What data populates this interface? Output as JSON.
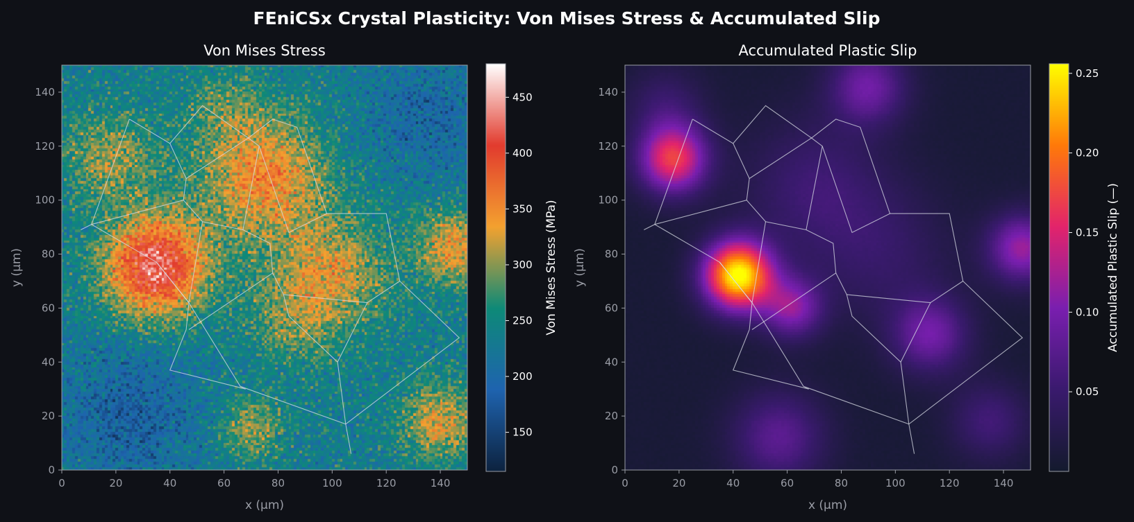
{
  "title": "FEniCSx Crystal Plasticity: Von Mises Stress & Accumulated Slip",
  "colors": {
    "background": "#0f1117",
    "axis": "#9a9da6",
    "grain_boundary": "#d8dce6",
    "text": "#ffffff"
  },
  "chart_data": [
    {
      "type": "heatmap",
      "title": "Von Mises Stress",
      "xlabel": "x (µm)",
      "ylabel": "y (µm)",
      "xlim": [
        0,
        150
      ],
      "ylim": [
        0,
        150
      ],
      "xticks": [
        0,
        20,
        40,
        60,
        80,
        100,
        120,
        140
      ],
      "yticks": [
        0,
        20,
        40,
        60,
        80,
        100,
        120,
        140
      ],
      "grid": false,
      "colormap": [
        "#0d2340",
        "#1f64b0",
        "#0e8a78",
        "#f4a230",
        "#e23c2e",
        "#ffffff"
      ],
      "colorbar": {
        "label": "Von Mises Stress (MPa)",
        "range": [
          115,
          480
        ],
        "ticks": [
          150,
          200,
          250,
          300,
          350,
          400,
          450
        ]
      },
      "field": {
        "baseline": 235,
        "noise": 45,
        "hotspots": [
          {
            "x": 35,
            "y": 75,
            "amplitude": 200,
            "sigma": 13
          },
          {
            "x": 75,
            "y": 108,
            "amplitude": 120,
            "sigma": 16
          },
          {
            "x": 100,
            "y": 73,
            "amplitude": 90,
            "sigma": 14
          },
          {
            "x": 145,
            "y": 82,
            "amplitude": 100,
            "sigma": 10
          },
          {
            "x": 18,
            "y": 115,
            "amplitude": 70,
            "sigma": 12
          },
          {
            "x": 140,
            "y": 18,
            "amplitude": 90,
            "sigma": 10
          },
          {
            "x": 70,
            "y": 15,
            "amplitude": 70,
            "sigma": 8
          },
          {
            "x": 85,
            "y": 55,
            "amplitude": 50,
            "sigma": 12
          },
          {
            "x": 60,
            "y": 135,
            "amplitude": 40,
            "sigma": 10
          },
          {
            "x": 25,
            "y": 20,
            "amplitude": -50,
            "sigma": 18
          },
          {
            "x": 135,
            "y": 130,
            "amplitude": -40,
            "sigma": 16
          }
        ]
      }
    },
    {
      "type": "heatmap",
      "title": "Accumulated Plastic Slip",
      "xlabel": "x (µm)",
      "ylabel": "y (µm)",
      "xlim": [
        0,
        150
      ],
      "ylim": [
        0,
        150
      ],
      "xticks": [
        0,
        20,
        40,
        60,
        80,
        100,
        120,
        140
      ],
      "yticks": [
        0,
        20,
        40,
        60,
        80,
        100,
        120,
        140
      ],
      "grid": false,
      "colormap": [
        "#141a2e",
        "#3a1a6e",
        "#7a1fb0",
        "#e3246c",
        "#ff7a0a",
        "#ffff00"
      ],
      "colorbar": {
        "label": "Accumulated Plastic Slip (—)",
        "range": [
          0.0,
          0.256
        ],
        "ticks": [
          0.05,
          0.1,
          0.15,
          0.2,
          0.25
        ]
      },
      "field": {
        "baseline": 0.008,
        "noise": 0.002,
        "hotspots": [
          {
            "x": 42,
            "y": 72,
            "amplitude": 0.25,
            "sigma": 9
          },
          {
            "x": 62,
            "y": 60,
            "amplitude": 0.1,
            "sigma": 8
          },
          {
            "x": 18,
            "y": 115,
            "amplitude": 0.16,
            "sigma": 9
          },
          {
            "x": 90,
            "y": 142,
            "amplitude": 0.085,
            "sigma": 10
          },
          {
            "x": 147,
            "y": 82,
            "amplitude": 0.11,
            "sigma": 9
          },
          {
            "x": 113,
            "y": 50,
            "amplitude": 0.085,
            "sigma": 10
          },
          {
            "x": 57,
            "y": 12,
            "amplitude": 0.07,
            "sigma": 12
          },
          {
            "x": 135,
            "y": 18,
            "amplitude": 0.05,
            "sigma": 10
          },
          {
            "x": 70,
            "y": 105,
            "amplitude": 0.045,
            "sigma": 18
          },
          {
            "x": 95,
            "y": 80,
            "amplitude": 0.035,
            "sigma": 18
          },
          {
            "x": 15,
            "y": 135,
            "amplitude": 0.04,
            "sigma": 10
          }
        ]
      }
    }
  ],
  "grain_boundaries": [
    [
      [
        25,
        130
      ],
      [
        40,
        121
      ],
      [
        46,
        108
      ],
      [
        45,
        100
      ],
      [
        52,
        92
      ],
      [
        67,
        89
      ],
      [
        77,
        84
      ],
      [
        78,
        73
      ],
      [
        82,
        65
      ],
      [
        84,
        57
      ],
      [
        102,
        40
      ],
      [
        105,
        17
      ],
      [
        107,
        6
      ]
    ],
    [
      [
        7,
        89
      ],
      [
        11,
        91
      ],
      [
        45,
        100
      ]
    ],
    [
      [
        40,
        121
      ],
      [
        52,
        135
      ],
      [
        69,
        123
      ],
      [
        78,
        130
      ],
      [
        87,
        127
      ],
      [
        98,
        95
      ],
      [
        120,
        95
      ],
      [
        125,
        70
      ],
      [
        147,
        49
      ],
      [
        105,
        17
      ],
      [
        66,
        31
      ],
      [
        68,
        30
      ],
      [
        40,
        37
      ],
      [
        46,
        52
      ],
      [
        47,
        62
      ],
      [
        35,
        77
      ]
    ],
    [
      [
        46,
        108
      ],
      [
        69,
        123
      ],
      [
        73,
        120
      ],
      [
        84,
        88
      ],
      [
        98,
        95
      ]
    ],
    [
      [
        35,
        77
      ],
      [
        11,
        91
      ],
      [
        25,
        130
      ]
    ],
    [
      [
        35,
        77
      ],
      [
        47,
        62
      ],
      [
        52,
        92
      ]
    ],
    [
      [
        47,
        62
      ],
      [
        66,
        31
      ]
    ],
    [
      [
        47,
        52
      ],
      [
        78,
        73
      ]
    ],
    [
      [
        82,
        65
      ],
      [
        113,
        62
      ],
      [
        125,
        70
      ]
    ],
    [
      [
        73,
        120
      ],
      [
        67,
        89
      ]
    ],
    [
      [
        113,
        62
      ],
      [
        102,
        40
      ]
    ]
  ]
}
